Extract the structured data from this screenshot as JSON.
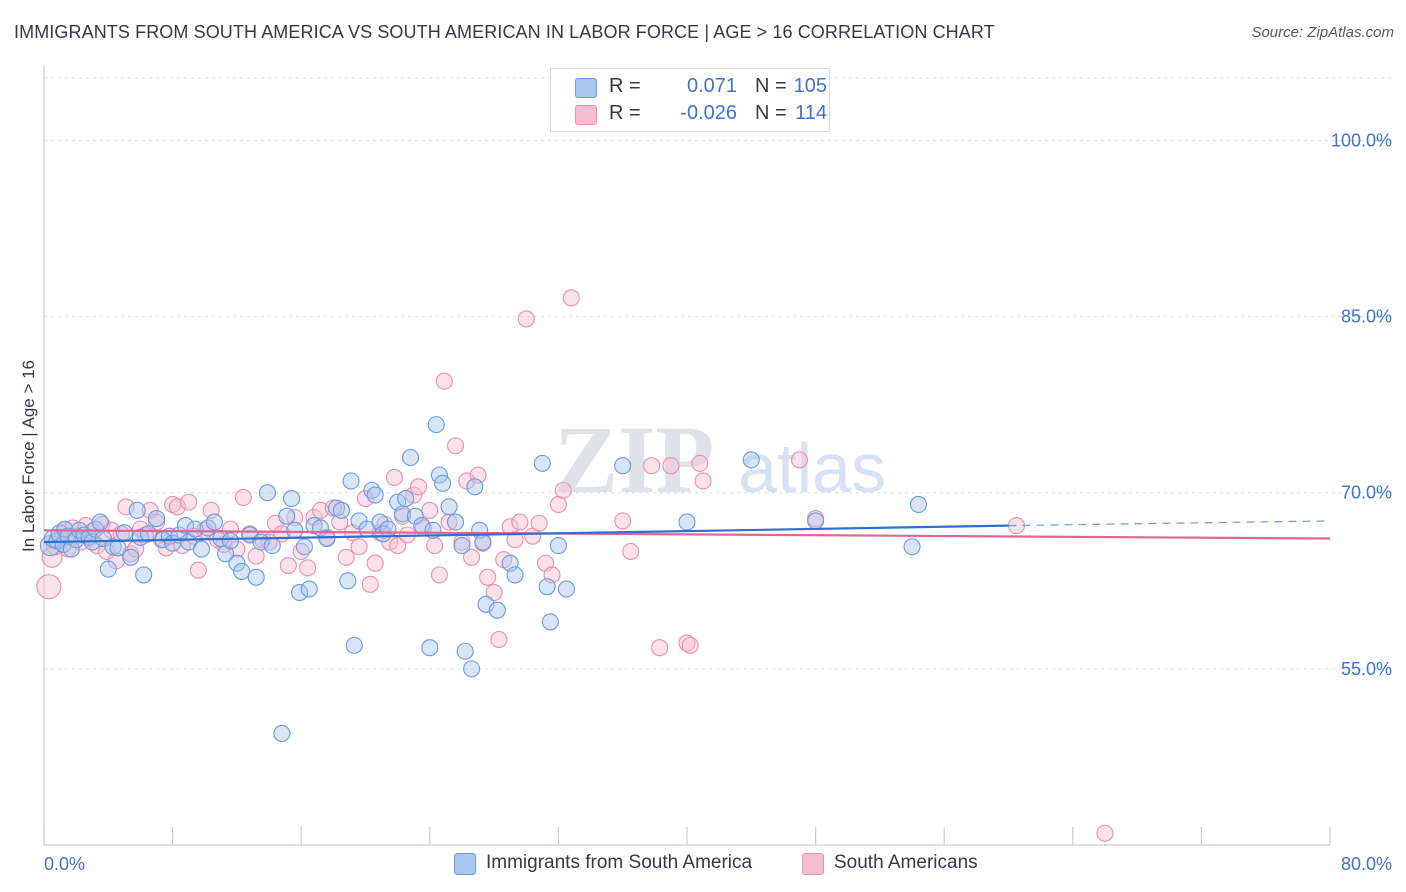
{
  "header": {
    "title": "IMMIGRANTS FROM SOUTH AMERICA VS SOUTH AMERICAN IN LABOR FORCE | AGE > 16 CORRELATION CHART",
    "source": "Source: ZipAtlas.com"
  },
  "legend": {
    "series1": {
      "r_label": "R =",
      "r_value": "0.071",
      "n_label": "N =",
      "n_value": "105"
    },
    "series2": {
      "r_label": "R =",
      "r_value": "-0.026",
      "n_label": "N =",
      "n_value": "114"
    }
  },
  "bottom_legend": {
    "series1": "Immigrants from South America",
    "series2": "South Americans"
  },
  "watermark": "ZIPatlas",
  "colors": {
    "blue_fill": "#a9c6ee",
    "blue_stroke": "#6a9be0",
    "blue_line": "#2f6fd0",
    "pink_fill": "#f6bed0",
    "pink_stroke": "#ec8eaf",
    "pink_line": "#e4648f",
    "tick_text": "#3f74c9",
    "grid": "#d9dde3"
  },
  "chart_data": {
    "type": "scatter",
    "title": "IMMIGRANTS FROM SOUTH AMERICA VS SOUTH AMERICAN IN LABOR FORCE | AGE > 16 CORRELATION CHART",
    "xlabel": "",
    "ylabel": "In Labor Force | Age > 16",
    "xlim": [
      0,
      80
    ],
    "ylim": [
      40,
      106
    ],
    "x_tick_labels": [
      "0.0%",
      "80.0%"
    ],
    "y_ticks": [
      55,
      70,
      85,
      100
    ],
    "y_tick_labels": [
      "55.0%",
      "70.0%",
      "85.0%",
      "100.0%"
    ],
    "series": [
      {
        "name": "Immigrants from South America",
        "color": "blue",
        "r": 0.071,
        "n": 105,
        "trend": {
          "x0": 0,
          "y0": 65.8,
          "x1": 60,
          "y1": 67.2,
          "dash_x1": 80,
          "dash_y1": 67.6
        },
        "points": [
          [
            0.4,
            65.5,
            8
          ],
          [
            0.6,
            66.1,
            7
          ],
          [
            0.8,
            65.9,
            6
          ],
          [
            1.0,
            66.5,
            7
          ],
          [
            1.2,
            65.6,
            6
          ],
          [
            1.3,
            66.9,
            6
          ],
          [
            1.5,
            66.3,
            6
          ],
          [
            1.7,
            65.2,
            6
          ],
          [
            2.0,
            66.0,
            6
          ],
          [
            2.2,
            66.8,
            6
          ],
          [
            2.5,
            66.4,
            6
          ],
          [
            2.8,
            66.2,
            6
          ],
          [
            3.0,
            65.8,
            6
          ],
          [
            3.2,
            66.9,
            6
          ],
          [
            3.5,
            67.5,
            6
          ],
          [
            3.7,
            66.1,
            6
          ],
          [
            4.0,
            63.5,
            6
          ],
          [
            4.3,
            65.4,
            6
          ],
          [
            4.6,
            65.3,
            6
          ],
          [
            5.0,
            66.6,
            6
          ],
          [
            5.4,
            64.5,
            6
          ],
          [
            5.8,
            68.5,
            6
          ],
          [
            6.0,
            66.2,
            6
          ],
          [
            6.2,
            63.0,
            6
          ],
          [
            6.5,
            66.5,
            6
          ],
          [
            7.0,
            67.8,
            6
          ],
          [
            7.4,
            66.0,
            6
          ],
          [
            7.8,
            66.3,
            6
          ],
          [
            8.0,
            65.7,
            6
          ],
          [
            8.4,
            66.4,
            6
          ],
          [
            8.8,
            67.2,
            6
          ],
          [
            9.0,
            65.8,
            6
          ],
          [
            9.4,
            66.9,
            6
          ],
          [
            9.8,
            65.2,
            6
          ],
          [
            10.2,
            67.0,
            6
          ],
          [
            10.6,
            67.5,
            6
          ],
          [
            11.0,
            66.1,
            6
          ],
          [
            11.3,
            64.8,
            6
          ],
          [
            11.6,
            65.9,
            6
          ],
          [
            12.0,
            64.0,
            6
          ],
          [
            12.3,
            63.3,
            6
          ],
          [
            12.8,
            66.4,
            6
          ],
          [
            13.2,
            62.8,
            6
          ],
          [
            13.5,
            65.8,
            6
          ],
          [
            13.9,
            70.0,
            6
          ],
          [
            14.2,
            65.5,
            6
          ],
          [
            14.8,
            49.5,
            6
          ],
          [
            15.1,
            68.0,
            6
          ],
          [
            15.4,
            69.5,
            6
          ],
          [
            15.6,
            66.8,
            6
          ],
          [
            15.9,
            61.5,
            6
          ],
          [
            16.2,
            65.4,
            6
          ],
          [
            16.5,
            61.8,
            6
          ],
          [
            16.8,
            67.2,
            6
          ],
          [
            17.2,
            67.0,
            6
          ],
          [
            17.6,
            66.1,
            6
          ],
          [
            18.2,
            68.7,
            6
          ],
          [
            18.5,
            68.5,
            6
          ],
          [
            18.9,
            62.5,
            6
          ],
          [
            19.1,
            71.0,
            6
          ],
          [
            19.3,
            57.0,
            6
          ],
          [
            19.6,
            67.6,
            6
          ],
          [
            20.1,
            66.9,
            6
          ],
          [
            20.4,
            70.2,
            6
          ],
          [
            20.6,
            69.8,
            6
          ],
          [
            20.9,
            67.5,
            6
          ],
          [
            21.1,
            66.5,
            6
          ],
          [
            21.4,
            66.9,
            6
          ],
          [
            22.0,
            69.2,
            6
          ],
          [
            22.3,
            68.2,
            6
          ],
          [
            22.5,
            69.5,
            6
          ],
          [
            22.8,
            73.0,
            6
          ],
          [
            23.1,
            68.0,
            6
          ],
          [
            23.5,
            67.2,
            6
          ],
          [
            24.0,
            56.8,
            6
          ],
          [
            24.2,
            66.8,
            6
          ],
          [
            24.4,
            75.8,
            6
          ],
          [
            24.6,
            71.5,
            6
          ],
          [
            24.8,
            70.8,
            6
          ],
          [
            25.2,
            68.8,
            6
          ],
          [
            25.6,
            67.5,
            6
          ],
          [
            26.0,
            65.5,
            6
          ],
          [
            26.2,
            56.5,
            6
          ],
          [
            26.6,
            55.0,
            6
          ],
          [
            26.8,
            70.5,
            6
          ],
          [
            27.1,
            66.8,
            6
          ],
          [
            27.3,
            65.8,
            6
          ],
          [
            27.5,
            60.5,
            6
          ],
          [
            28.2,
            60.0,
            6
          ],
          [
            29.0,
            64.0,
            6
          ],
          [
            29.3,
            63.0,
            6
          ],
          [
            31.0,
            72.5,
            6
          ],
          [
            31.3,
            62.0,
            6
          ],
          [
            31.5,
            59.0,
            6
          ],
          [
            32.0,
            65.5,
            6
          ],
          [
            32.5,
            61.8,
            6
          ],
          [
            36.0,
            72.3,
            6
          ],
          [
            40.0,
            67.5,
            6
          ],
          [
            44.0,
            72.8,
            6
          ],
          [
            48.0,
            67.6,
            6
          ],
          [
            54.0,
            65.4,
            6
          ],
          [
            54.4,
            69.0,
            6
          ]
        ]
      },
      {
        "name": "South Americans",
        "color": "pink",
        "r": -0.026,
        "n": 114,
        "trend": {
          "x0": 0,
          "y0": 66.8,
          "x1": 80,
          "y1": 66.1
        },
        "points": [
          [
            0.3,
            62.0,
            10
          ],
          [
            0.5,
            64.5,
            8
          ],
          [
            0.7,
            65.5,
            7
          ],
          [
            1.0,
            66.0,
            7
          ],
          [
            1.3,
            66.8,
            6
          ],
          [
            1.5,
            65.2,
            6
          ],
          [
            1.8,
            67.0,
            6
          ],
          [
            2.0,
            66.3,
            6
          ],
          [
            2.3,
            65.8,
            6
          ],
          [
            2.6,
            67.2,
            6
          ],
          [
            3.0,
            66.7,
            6
          ],
          [
            3.3,
            65.5,
            6
          ],
          [
            3.6,
            67.3,
            6
          ],
          [
            3.9,
            65.0,
            6
          ],
          [
            4.2,
            66.8,
            6
          ],
          [
            4.5,
            64.2,
            6
          ],
          [
            4.8,
            66.5,
            6
          ],
          [
            5.1,
            68.8,
            6
          ],
          [
            5.4,
            64.8,
            6
          ],
          [
            5.7,
            65.2,
            6
          ],
          [
            6.0,
            66.9,
            6
          ],
          [
            6.3,
            66.4,
            6
          ],
          [
            6.6,
            68.5,
            6
          ],
          [
            7.0,
            67.5,
            6
          ],
          [
            7.3,
            66.0,
            6
          ],
          [
            7.6,
            65.3,
            6
          ],
          [
            8.0,
            69.0,
            6
          ],
          [
            8.3,
            68.8,
            6
          ],
          [
            8.6,
            65.5,
            6
          ],
          [
            9.0,
            69.2,
            6
          ],
          [
            9.3,
            66.3,
            6
          ],
          [
            9.6,
            63.4,
            6
          ],
          [
            10.0,
            66.8,
            6
          ],
          [
            10.4,
            68.5,
            6
          ],
          [
            10.8,
            66.0,
            6
          ],
          [
            11.2,
            65.6,
            6
          ],
          [
            11.6,
            66.9,
            6
          ],
          [
            12.0,
            65.2,
            6
          ],
          [
            12.4,
            69.6,
            6
          ],
          [
            12.8,
            66.5,
            6
          ],
          [
            13.2,
            64.6,
            6
          ],
          [
            13.6,
            66.0,
            6
          ],
          [
            14.0,
            65.8,
            6
          ],
          [
            14.4,
            67.4,
            6
          ],
          [
            14.8,
            66.5,
            6
          ],
          [
            15.2,
            63.8,
            6
          ],
          [
            15.6,
            67.9,
            6
          ],
          [
            16.0,
            65.0,
            6
          ],
          [
            16.4,
            63.6,
            6
          ],
          [
            16.8,
            67.9,
            6
          ],
          [
            17.2,
            68.5,
            6
          ],
          [
            17.6,
            66.2,
            6
          ],
          [
            18.0,
            68.7,
            6
          ],
          [
            18.4,
            67.5,
            6
          ],
          [
            18.8,
            64.5,
            6
          ],
          [
            19.2,
            66.6,
            6
          ],
          [
            19.6,
            65.4,
            6
          ],
          [
            20.0,
            69.5,
            6
          ],
          [
            20.3,
            62.2,
            6
          ],
          [
            20.6,
            64.0,
            6
          ],
          [
            20.9,
            66.6,
            6
          ],
          [
            21.2,
            67.3,
            6
          ],
          [
            21.5,
            65.8,
            6
          ],
          [
            21.8,
            71.3,
            6
          ],
          [
            22.0,
            65.5,
            6
          ],
          [
            22.3,
            68.0,
            6
          ],
          [
            22.6,
            66.4,
            6
          ],
          [
            23.0,
            69.8,
            6
          ],
          [
            23.3,
            70.5,
            6
          ],
          [
            23.6,
            67.0,
            6
          ],
          [
            24.0,
            68.5,
            6
          ],
          [
            24.3,
            65.5,
            6
          ],
          [
            24.6,
            63.0,
            6
          ],
          [
            24.9,
            79.5,
            6
          ],
          [
            25.2,
            67.5,
            6
          ],
          [
            25.6,
            74.0,
            6
          ],
          [
            26.0,
            65.8,
            6
          ],
          [
            26.3,
            71.0,
            6
          ],
          [
            26.6,
            64.5,
            6
          ],
          [
            27.0,
            71.5,
            6
          ],
          [
            27.3,
            65.7,
            6
          ],
          [
            27.6,
            62.8,
            6
          ],
          [
            28.0,
            61.5,
            6
          ],
          [
            28.3,
            57.5,
            6
          ],
          [
            28.6,
            64.3,
            6
          ],
          [
            29.0,
            67.1,
            6
          ],
          [
            29.3,
            66.0,
            6
          ],
          [
            29.6,
            67.5,
            6
          ],
          [
            30.0,
            84.8,
            6
          ],
          [
            30.4,
            66.3,
            6
          ],
          [
            30.8,
            67.4,
            6
          ],
          [
            31.2,
            64.0,
            6
          ],
          [
            31.6,
            63.0,
            6
          ],
          [
            32.0,
            69.0,
            6
          ],
          [
            32.3,
            70.2,
            6
          ],
          [
            32.8,
            86.6,
            6
          ],
          [
            36.0,
            67.6,
            6
          ],
          [
            36.5,
            65.0,
            6
          ],
          [
            37.8,
            72.3,
            6
          ],
          [
            38.3,
            56.8,
            6
          ],
          [
            39.0,
            72.3,
            6
          ],
          [
            40.0,
            57.2,
            6
          ],
          [
            40.2,
            57.0,
            6
          ],
          [
            40.8,
            72.5,
            6
          ],
          [
            41.0,
            71.0,
            6
          ],
          [
            47.0,
            72.8,
            6
          ],
          [
            48.0,
            67.8,
            6
          ],
          [
            60.5,
            67.2,
            6
          ],
          [
            66.0,
            41.0,
            6
          ]
        ]
      }
    ]
  }
}
